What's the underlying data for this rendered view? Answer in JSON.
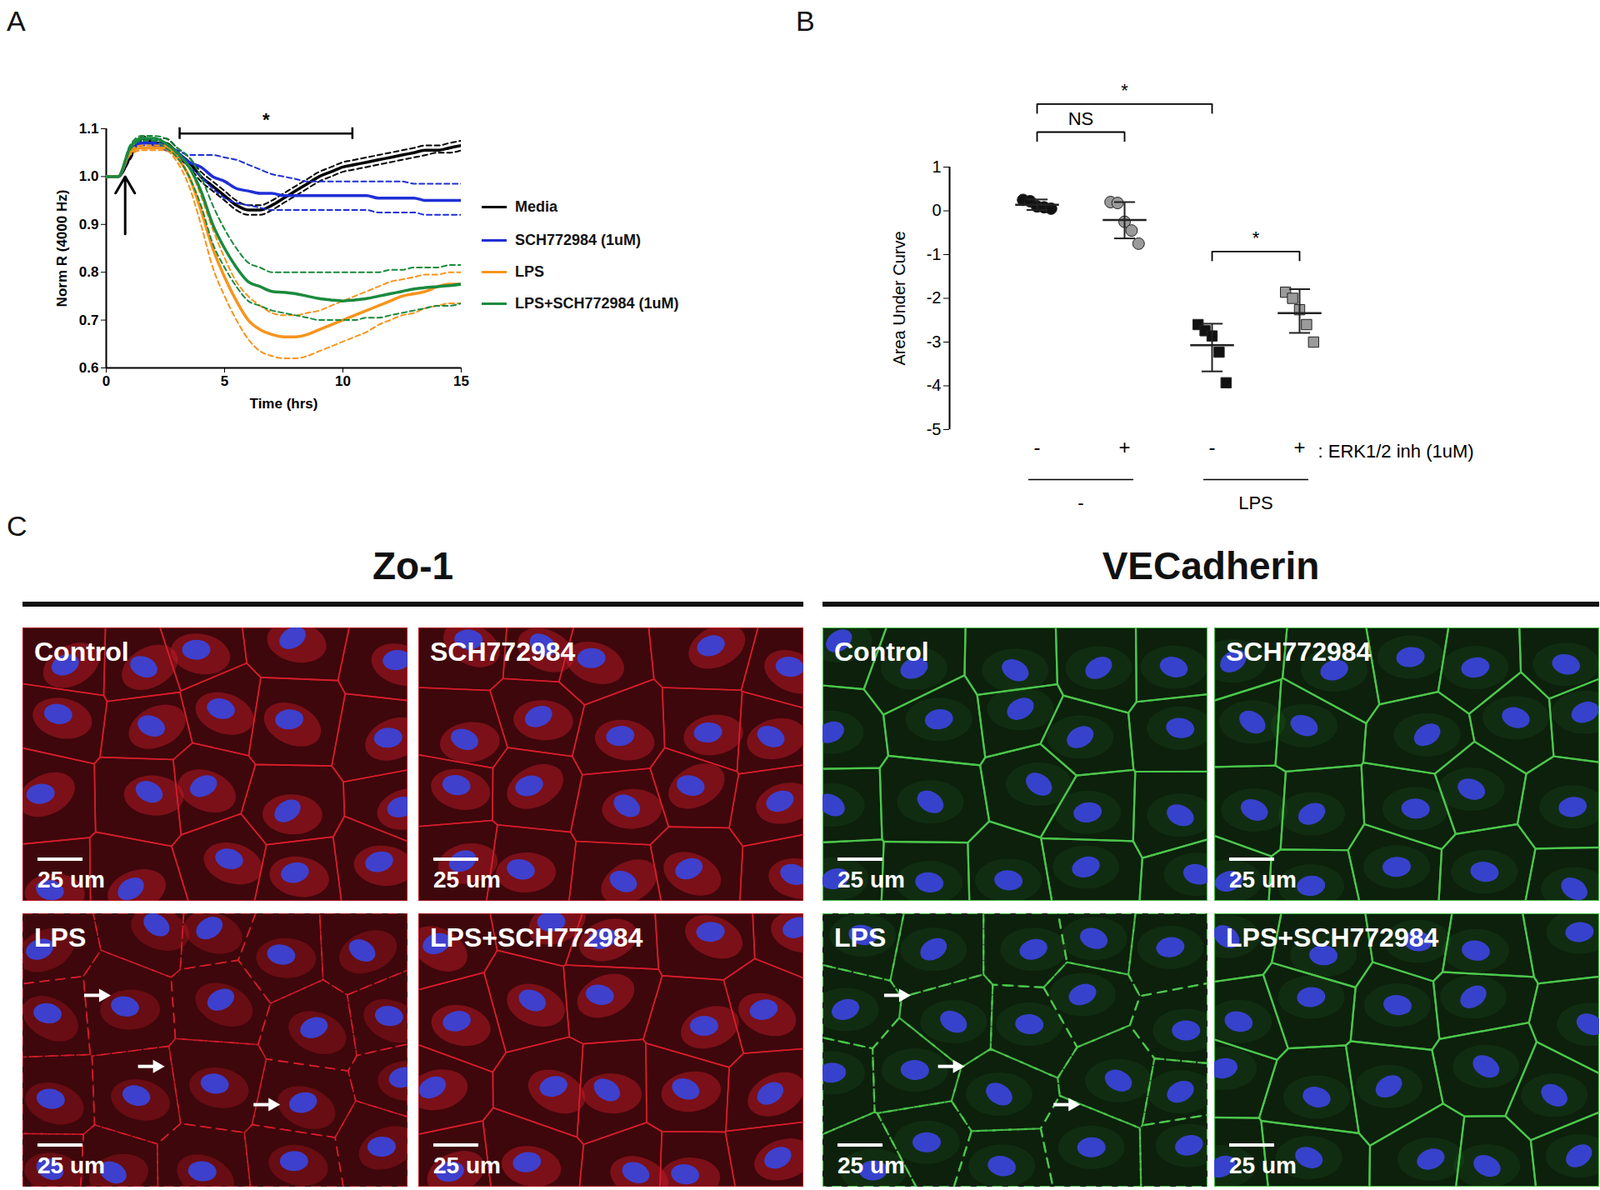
{
  "chart_data": [
    {
      "panel": "A",
      "type": "line",
      "xlabel": "Time (hrs)",
      "ylabel": "Norm R (4000 Hz)",
      "xlim": [
        0,
        15
      ],
      "xticks": [
        0,
        5,
        10,
        15
      ],
      "ylim": [
        0.6,
        1.1
      ],
      "yticks": [
        0.6,
        0.7,
        0.8,
        0.9,
        {
          "value": 1,
          "label": "1.0"
        },
        1.1
      ],
      "legend": "right",
      "x": [
        0,
        0.5,
        1,
        1.5,
        2,
        2.5,
        3,
        3.5,
        4,
        4.5,
        5,
        5.5,
        6,
        6.5,
        7,
        7.5,
        8,
        8.5,
        9,
        9.5,
        10,
        10.5,
        11,
        11.5,
        12,
        12.5,
        13,
        13.5,
        14,
        14.5,
        15
      ],
      "series": [
        {
          "name": "Media",
          "color": "#000000",
          "values": [
            1.0,
            1.0,
            1.04,
            1.08,
            1.07,
            1.07,
            1.05,
            1.03,
            1.0,
            0.98,
            0.96,
            0.94,
            0.93,
            0.93,
            0.94,
            0.955,
            0.97,
            0.985,
            1.0,
            1.01,
            1.02,
            1.025,
            1.03,
            1.035,
            1.04,
            1.045,
            1.05,
            1.055,
            1.055,
            1.06,
            1.065
          ],
          "lower": [
            1.0,
            1.0,
            1.035,
            1.075,
            1.065,
            1.06,
            1.04,
            1.02,
            0.99,
            0.97,
            0.95,
            0.93,
            0.92,
            0.92,
            0.93,
            0.945,
            0.96,
            0.975,
            0.99,
            1.0,
            1.01,
            1.015,
            1.02,
            1.025,
            1.03,
            1.035,
            1.04,
            1.045,
            1.05,
            1.05,
            1.055
          ],
          "upper": [
            1.0,
            1.0,
            1.045,
            1.085,
            1.075,
            1.08,
            1.06,
            1.04,
            1.01,
            0.99,
            0.97,
            0.95,
            0.94,
            0.94,
            0.95,
            0.965,
            0.98,
            0.995,
            1.01,
            1.02,
            1.03,
            1.035,
            1.04,
            1.045,
            1.05,
            1.055,
            1.06,
            1.065,
            1.065,
            1.07,
            1.075
          ]
        },
        {
          "name": "SCH772984 (1uM)",
          "color": "#1f2fd6",
          "values": [
            1.0,
            1.0,
            1.05,
            1.07,
            1.07,
            1.06,
            1.05,
            1.03,
            1.02,
            1.0,
            0.99,
            0.975,
            0.97,
            0.965,
            0.965,
            0.96,
            0.96,
            0.96,
            0.96,
            0.96,
            0.96,
            0.96,
            0.96,
            0.955,
            0.955,
            0.955,
            0.955,
            0.95,
            0.95,
            0.95,
            0.95
          ],
          "lower": [
            1.0,
            1.0,
            1.045,
            1.065,
            1.065,
            1.055,
            1.045,
            1.02,
            1.0,
            0.975,
            0.955,
            0.945,
            0.94,
            0.935,
            0.93,
            0.93,
            0.93,
            0.93,
            0.93,
            0.93,
            0.93,
            0.93,
            0.93,
            0.925,
            0.925,
            0.925,
            0.925,
            0.92,
            0.92,
            0.92,
            0.92
          ],
          "upper": [
            1.0,
            1.0,
            1.055,
            1.075,
            1.075,
            1.065,
            1.055,
            1.045,
            1.045,
            1.045,
            1.04,
            1.035,
            1.025,
            1.015,
            1.005,
            1.0,
            0.995,
            0.99,
            0.99,
            0.99,
            0.99,
            0.99,
            0.99,
            0.99,
            0.99,
            0.99,
            0.985,
            0.985,
            0.985,
            0.985,
            0.985
          ]
        },
        {
          "name": "LPS",
          "color": "#f7941d",
          "values": [
            1.0,
            1.0,
            1.05,
            1.06,
            1.06,
            1.06,
            1.04,
            1.0,
            0.93,
            0.85,
            0.79,
            0.74,
            0.7,
            0.68,
            0.67,
            0.665,
            0.665,
            0.67,
            0.68,
            0.69,
            0.7,
            0.71,
            0.72,
            0.73,
            0.74,
            0.75,
            0.755,
            0.76,
            0.77,
            0.775,
            0.775
          ],
          "lower": [
            1.0,
            1.0,
            1.045,
            1.055,
            1.055,
            1.055,
            1.03,
            0.98,
            0.9,
            0.81,
            0.75,
            0.7,
            0.66,
            0.635,
            0.625,
            0.62,
            0.62,
            0.625,
            0.635,
            0.645,
            0.655,
            0.665,
            0.675,
            0.69,
            0.7,
            0.71,
            0.715,
            0.725,
            0.73,
            0.735,
            0.735
          ],
          "upper": [
            1.0,
            1.0,
            1.055,
            1.065,
            1.065,
            1.065,
            1.05,
            1.02,
            0.96,
            0.89,
            0.83,
            0.78,
            0.75,
            0.73,
            0.715,
            0.71,
            0.71,
            0.715,
            0.72,
            0.73,
            0.74,
            0.75,
            0.76,
            0.77,
            0.78,
            0.785,
            0.79,
            0.795,
            0.795,
            0.8,
            0.8
          ]
        },
        {
          "name": "LPS+SCH772984 (1uM)",
          "color": "#1a8a3e",
          "values": [
            1.0,
            1.0,
            1.06,
            1.08,
            1.08,
            1.07,
            1.05,
            1.02,
            0.97,
            0.9,
            0.85,
            0.81,
            0.78,
            0.77,
            0.76,
            0.758,
            0.755,
            0.75,
            0.745,
            0.742,
            0.74,
            0.742,
            0.745,
            0.75,
            0.755,
            0.76,
            0.765,
            0.768,
            0.77,
            0.772,
            0.775
          ],
          "lower": [
            1.0,
            1.0,
            1.055,
            1.075,
            1.075,
            1.06,
            1.04,
            1.0,
            0.94,
            0.86,
            0.81,
            0.77,
            0.74,
            0.73,
            0.72,
            0.715,
            0.71,
            0.705,
            0.7,
            0.7,
            0.7,
            0.7,
            0.705,
            0.705,
            0.71,
            0.715,
            0.72,
            0.725,
            0.73,
            0.73,
            0.735
          ],
          "upper": [
            1.0,
            1.0,
            1.065,
            1.085,
            1.085,
            1.08,
            1.06,
            1.04,
            1.0,
            0.94,
            0.89,
            0.85,
            0.82,
            0.81,
            0.8,
            0.8,
            0.8,
            0.8,
            0.8,
            0.8,
            0.8,
            0.8,
            0.8,
            0.8,
            0.805,
            0.805,
            0.81,
            0.81,
            0.81,
            0.815,
            0.815
          ]
        }
      ],
      "annotations": [
        {
          "type": "bracket",
          "text": "*",
          "x1": 3.1,
          "x2": 10.4,
          "y": 1.09
        },
        {
          "type": "arrow",
          "x": 0.8,
          "y1": 0.88,
          "y2": 1.0
        }
      ]
    },
    {
      "panel": "B",
      "type": "scatter",
      "ylabel": "Area Under Curve",
      "xlabel": ": ERK1/2 inh (1uM)",
      "categories": [
        "-",
        "+",
        "-",
        "+"
      ],
      "groups": [
        {
          "label": "-",
          "from": 0,
          "to": 1
        },
        {
          "label": "LPS",
          "from": 2,
          "to": 3
        }
      ],
      "ylim": [
        -5,
        1
      ],
      "yticks": [
        -5,
        -4,
        -3,
        -2,
        -1,
        0,
        1
      ],
      "points": [
        [
          0.25,
          0.22,
          0.1,
          0.08,
          0.05
        ],
        [
          0.2,
          0.18,
          -0.25,
          -0.45,
          -0.75
        ],
        [
          -2.6,
          -2.74,
          -2.86,
          -3.23,
          -3.93
        ],
        [
          -1.86,
          -2.0,
          -2.26,
          -2.6,
          -3.0
        ]
      ],
      "means": [
        0.14,
        -0.21,
        -3.07,
        -2.34
      ],
      "error_low": [
        0.02,
        -0.63,
        -3.67,
        -2.79
      ],
      "error_high": [
        0.26,
        0.2,
        -2.58,
        -1.79
      ],
      "colors": [
        "#111111",
        "#9a9a9a",
        "#111111",
        "#9a9a9a"
      ],
      "markers": [
        "circle",
        "circle",
        "square",
        "square"
      ],
      "annotations": [
        {
          "type": "bracket",
          "text": "*",
          "x1": 0,
          "x2": 2,
          "y": 2.44
        },
        {
          "type": "bracket",
          "text": "NS",
          "x1": 0,
          "x2": 1,
          "y": 1.8
        },
        {
          "type": "bracket",
          "text": "*",
          "x1": 2,
          "x2": 3,
          "y": -0.93
        }
      ]
    }
  ],
  "panel_c": {
    "panel": "C",
    "scale_bar": "25 um",
    "groups": [
      {
        "title": "Zo-1",
        "color": "#d81e2c",
        "panels": [
          "Control",
          "SCH772984",
          "LPS",
          "LPS+SCH772984"
        ]
      },
      {
        "title": "VECadherin",
        "color": "#4cc94c",
        "panels": [
          "Control",
          "SCH772984",
          "LPS",
          "LPS+SCH772984"
        ]
      }
    ]
  }
}
